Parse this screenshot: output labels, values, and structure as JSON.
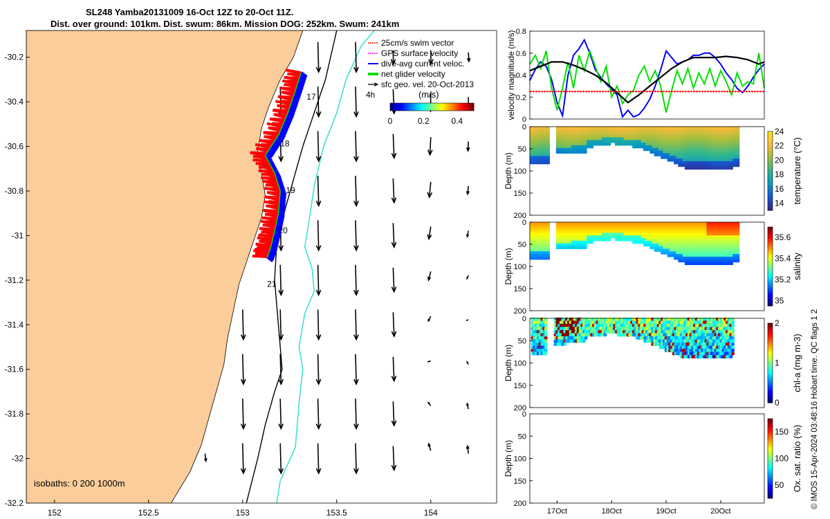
{
  "titles": {
    "line1": "SL248 Yamba20131009 16-Oct 12Z to 20-Oct 11Z.",
    "line2": "Dist. over ground: 101km. Dist. swum: 86km. Mission DOG: 252km. Swum: 241km"
  },
  "side_caption": "© IMOS 15-Apr-2024 03:48:16 Hobart time. QC flags 1  2",
  "colors": {
    "land": "#fbcd9b",
    "swim_vector": "#ff0000",
    "gps_velocity": "#ff00ff",
    "current_velocity": "#0000ff",
    "glider_velocity": "#00e000",
    "geo_velocity": "#000000",
    "isobath_200": "#000000",
    "isobath_1000": "#40e0d0"
  },
  "chart_data": [
    {
      "id": "map",
      "type": "scatter",
      "xlim": [
        151.85,
        154.35
      ],
      "ylim": [
        -32.2,
        -30.08
      ],
      "xticks": [
        152,
        152.5,
        153,
        153.5,
        154
      ],
      "xtick_labels": [
        "152",
        "152.5",
        "153",
        "153.5",
        "154"
      ],
      "yticks": [
        -30.2,
        -30.4,
        -30.6,
        -30.8,
        -31,
        -31.2,
        -31.4,
        -31.6,
        -31.8,
        -32,
        -32.2
      ],
      "ytick_labels": [
        "-30.2",
        "-30.4",
        "-30.6",
        "-30.8",
        "-31",
        "-31.2",
        "-31.4",
        "-31.6",
        "-31.8",
        "-32",
        "-32.2"
      ],
      "legend": {
        "location": "top-right",
        "entries": [
          "25cm/s swim vector",
          "GPS surface velocity",
          "dive-avg current veloc.",
          "net glider velocity",
          "sfc geo. vel. 20-Oct-2013"
        ]
      },
      "colorbar": {
        "label": "(m/s)",
        "ticks": [
          "0",
          "0.2",
          "0.4"
        ],
        "range": [
          0,
          0.5
        ]
      },
      "annotation_4h": "4h",
      "isobaths_label": "isobaths: 0   200  1000m",
      "coastline": [
        [
          153.32,
          -30.08
        ],
        [
          153.27,
          -30.2
        ],
        [
          153.2,
          -30.3
        ],
        [
          153.14,
          -30.42
        ],
        [
          153.1,
          -30.52
        ],
        [
          153.08,
          -30.62
        ],
        [
          153.1,
          -30.72
        ],
        [
          153.12,
          -30.82
        ],
        [
          153.1,
          -30.92
        ],
        [
          153.06,
          -31.02
        ],
        [
          153.02,
          -31.12
        ],
        [
          152.98,
          -31.22
        ],
        [
          152.95,
          -31.34
        ],
        [
          152.92,
          -31.46
        ],
        [
          152.9,
          -31.58
        ],
        [
          152.86,
          -31.7
        ],
        [
          152.82,
          -31.82
        ],
        [
          152.78,
          -31.94
        ],
        [
          152.72,
          -32.06
        ],
        [
          152.62,
          -32.2
        ]
      ],
      "isobath_200": [
        [
          153.5,
          -30.08
        ],
        [
          153.44,
          -30.3
        ],
        [
          153.38,
          -30.45
        ],
        [
          153.32,
          -30.6
        ],
        [
          153.27,
          -30.75
        ],
        [
          153.22,
          -30.9
        ],
        [
          153.18,
          -31.05
        ],
        [
          153.17,
          -31.2
        ],
        [
          153.19,
          -31.4
        ],
        [
          153.21,
          -31.6
        ],
        [
          153.17,
          -31.7
        ],
        [
          153.12,
          -31.85
        ],
        [
          153.08,
          -32
        ],
        [
          153.02,
          -32.2
        ]
      ],
      "isobath_1000": [
        [
          153.7,
          -30.08
        ],
        [
          153.63,
          -30.15
        ],
        [
          153.55,
          -30.3
        ],
        [
          153.5,
          -30.45
        ],
        [
          153.43,
          -30.6
        ],
        [
          153.38,
          -30.78
        ],
        [
          153.35,
          -30.95
        ],
        [
          153.33,
          -31.05
        ],
        [
          153.37,
          -31.15
        ],
        [
          153.38,
          -31.25
        ],
        [
          153.33,
          -31.35
        ],
        [
          153.3,
          -31.5
        ],
        [
          153.32,
          -31.6
        ],
        [
          153.3,
          -31.75
        ],
        [
          153.28,
          -31.95
        ],
        [
          153.2,
          -32.1
        ],
        [
          153.18,
          -32.2
        ]
      ],
      "glider_track": [
        [
          153.31,
          -30.27
        ],
        [
          153.28,
          -30.35
        ],
        [
          153.24,
          -30.45
        ],
        [
          153.19,
          -30.55
        ],
        [
          153.12,
          -30.64
        ],
        [
          153.17,
          -30.72
        ],
        [
          153.2,
          -30.8
        ],
        [
          153.19,
          -30.9
        ],
        [
          153.17,
          -30.98
        ],
        [
          153.15,
          -31.05
        ],
        [
          153.13,
          -31.1
        ]
      ],
      "day_labels": [
        {
          "text": "17",
          "lon": 153.34,
          "lat": -30.39
        },
        {
          "text": "18",
          "lon": 153.2,
          "lat": -30.6
        },
        {
          "text": "19",
          "lon": 153.23,
          "lat": -30.81
        },
        {
          "text": "20",
          "lon": 153.19,
          "lat": -30.99
        },
        {
          "text": "21",
          "lon": 153.13,
          "lat": -31.23
        }
      ],
      "vector_columns": [
        152.8,
        153.0,
        153.2,
        153.4,
        153.6,
        153.8,
        154.0,
        154.2
      ],
      "vector_rows": [
        -30.2,
        -30.4,
        -30.6,
        -30.8,
        -31.0,
        -31.2,
        -31.4,
        -31.6,
        -31.8,
        -32.0
      ]
    },
    {
      "id": "velocity",
      "type": "line",
      "ylabel": "velocity magnitude (m/s)",
      "ylim": [
        0,
        0.8
      ],
      "yticks": [
        "0",
        "0.2",
        "0.4",
        "0.6",
        "0.8"
      ],
      "days": [
        16.5,
        20.8
      ],
      "series": [
        {
          "name": "dive-avg current veloc.",
          "color": "#0000ff",
          "x": [
            16.5,
            16.6,
            16.7,
            16.8,
            16.9,
            17.0,
            17.1,
            17.2,
            17.3,
            17.4,
            17.5,
            17.6,
            17.7,
            17.8,
            17.9,
            18.0,
            18.1,
            18.2,
            18.3,
            18.4,
            18.5,
            18.6,
            18.7,
            18.8,
            18.9,
            19.0,
            19.1,
            19.2,
            19.3,
            19.4,
            19.5,
            19.6,
            19.7,
            19.8,
            19.9,
            20.0,
            20.1,
            20.2,
            20.3,
            20.4,
            20.5,
            20.6,
            20.7,
            20.8
          ],
          "values": [
            0.35,
            0.45,
            0.52,
            0.48,
            0.36,
            0.15,
            0.03,
            0.4,
            0.58,
            0.64,
            0.72,
            0.6,
            0.45,
            0.38,
            0.32,
            0.27,
            0.22,
            0.02,
            0.08,
            0.02,
            0.04,
            0.1,
            0.18,
            0.3,
            0.45,
            0.62,
            0.56,
            0.5,
            0.52,
            0.54,
            0.58,
            0.58,
            0.6,
            0.6,
            0.56,
            0.5,
            0.42,
            0.36,
            0.28,
            0.24,
            0.3,
            0.38,
            0.45,
            0.5
          ]
        },
        {
          "name": "net glider velocity",
          "color": "#00e000",
          "x": [
            16.5,
            16.6,
            16.7,
            16.8,
            16.9,
            17.0,
            17.1,
            17.2,
            17.3,
            17.4,
            17.5,
            17.6,
            17.7,
            17.8,
            17.9,
            18.0,
            18.1,
            18.2,
            18.3,
            18.4,
            18.5,
            18.6,
            18.7,
            18.8,
            18.9,
            19.0,
            19.1,
            19.2,
            19.3,
            19.4,
            19.5,
            19.6,
            19.7,
            19.8,
            19.9,
            20.0,
            20.1,
            20.2,
            20.3,
            20.4,
            20.5,
            20.6,
            20.7,
            20.8
          ],
          "values": [
            0.5,
            0.58,
            0.46,
            0.62,
            0.28,
            0.08,
            0.28,
            0.52,
            0.28,
            0.58,
            0.44,
            0.62,
            0.48,
            0.34,
            0.48,
            0.2,
            0.3,
            0.14,
            0.22,
            0.26,
            0.4,
            0.48,
            0.34,
            0.44,
            0.3,
            0.06,
            0.26,
            0.44,
            0.32,
            0.46,
            0.28,
            0.42,
            0.32,
            0.46,
            0.3,
            0.44,
            0.34,
            0.22,
            0.42,
            0.3,
            0.34,
            0.32,
            0.6,
            0.28
          ]
        },
        {
          "name": "GPS surface velocity",
          "color": "#000000",
          "x": [
            16.5,
            16.7,
            16.9,
            17.1,
            17.3,
            17.5,
            17.7,
            17.9,
            18.1,
            18.3,
            18.5,
            18.7,
            18.9,
            19.1,
            19.3,
            19.5,
            19.7,
            19.9,
            20.1,
            20.3,
            20.5,
            20.7,
            20.8
          ],
          "values": [
            0.44,
            0.48,
            0.52,
            0.52,
            0.49,
            0.45,
            0.4,
            0.33,
            0.24,
            0.15,
            0.22,
            0.3,
            0.38,
            0.46,
            0.52,
            0.56,
            0.56,
            0.56,
            0.57,
            0.56,
            0.54,
            0.5,
            0.52
          ]
        },
        {
          "name": "25cm/s swim vector",
          "color": "#ff0000",
          "x": [
            16.5,
            20.8
          ],
          "values": [
            0.25,
            0.25
          ]
        }
      ]
    },
    {
      "id": "temperature",
      "type": "heatmap",
      "ylabel": "Depth (m)",
      "ylim": [
        200,
        0
      ],
      "yticks": [
        "0",
        "50",
        "100",
        "150",
        "200"
      ],
      "colorbar_label": "temperature (°C)",
      "colorbar_ticks": [
        "24",
        "22",
        "20",
        "18",
        "16",
        "14"
      ],
      "range": [
        13,
        24
      ]
    },
    {
      "id": "salinity",
      "type": "heatmap",
      "ylabel": "Depth (m)",
      "ylim": [
        200,
        0
      ],
      "yticks": [
        "0",
        "50",
        "100",
        "150",
        "200"
      ],
      "colorbar_label": "salinity",
      "colorbar_ticks": [
        "35.6",
        "35.4",
        "35.2",
        "35"
      ],
      "range": [
        34.95,
        35.7
      ]
    },
    {
      "id": "chla",
      "type": "scatter",
      "ylabel": "Depth (m)",
      "ylim": [
        200,
        0
      ],
      "yticks": [
        "0",
        "50",
        "100",
        "150",
        "200"
      ],
      "colorbar_label": "chl-a (mg m-3)",
      "colorbar_ticks": [
        "2",
        "1",
        "0"
      ],
      "range": [
        0,
        2
      ]
    },
    {
      "id": "oxygen",
      "type": "heatmap",
      "ylabel": "Depth (m)",
      "ylim": [
        200,
        0
      ],
      "yticks": [
        "0",
        "50",
        "100",
        "150",
        "200"
      ],
      "xtick_labels": [
        "17Oct",
        "18Oct",
        "19Oct",
        "20Oct"
      ],
      "colorbar_label": "Ox. sat. ratio (%)",
      "colorbar_ticks": [
        "150",
        "100",
        "50"
      ],
      "range": [
        25,
        175
      ]
    }
  ]
}
